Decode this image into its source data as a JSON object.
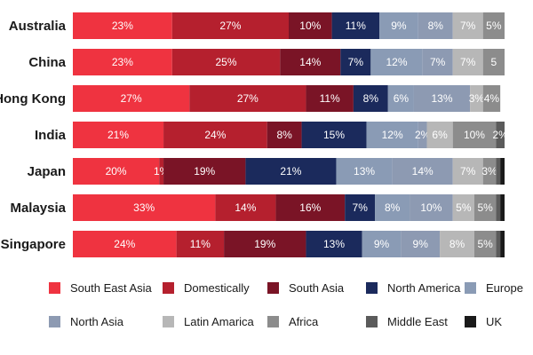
{
  "chart_data": {
    "type": "bar",
    "orientation": "horizontal",
    "stacked": "100%",
    "categories": [
      "Australia",
      "China",
      "Hong Kong",
      "India",
      "Japan",
      "Malaysia",
      "Singapore"
    ],
    "series": [
      {
        "name": "South East Asia",
        "color": "#ef3340",
        "values": [
          23,
          23,
          27,
          21,
          20,
          33,
          24
        ],
        "labels": [
          "23%",
          "23%",
          "27%",
          "21%",
          "20%",
          "33%",
          "24%"
        ]
      },
      {
        "name": "Domestically",
        "color": "#b5202e",
        "values": [
          27,
          25,
          27,
          24,
          1,
          14,
          11
        ],
        "labels": [
          "27%",
          "25%",
          "27%",
          "24%",
          "1%",
          "14%",
          "11%"
        ]
      },
      {
        "name": "South Asia",
        "color": "#7a1426",
        "values": [
          10,
          14,
          11,
          8,
          19,
          16,
          19
        ],
        "labels": [
          "10%",
          "14%",
          "11%",
          "8%",
          "19%",
          "16%",
          "19%"
        ]
      },
      {
        "name": "North America",
        "color": "#1b2a5c",
        "values": [
          11,
          7,
          8,
          15,
          21,
          7,
          13
        ],
        "labels": [
          "11%",
          "7%",
          "8%",
          "15%",
          "21%",
          "7%",
          "13%"
        ]
      },
      {
        "name": "Europe",
        "color": "#8a9bb5",
        "values": [
          9,
          12,
          6,
          12,
          13,
          8,
          9
        ],
        "labels": [
          "9%",
          "12%",
          "6%",
          "12%",
          "13%",
          "8%",
          "9%"
        ]
      },
      {
        "name": "North Asia",
        "color": "#8d9ab2",
        "values": [
          8,
          7,
          13,
          2,
          14,
          10,
          9
        ],
        "labels": [
          "8%",
          "7%",
          "13%",
          "2%",
          "14%",
          "10%",
          "9%"
        ]
      },
      {
        "name": "Latin Amarica",
        "color": "#b7b7b7",
        "values": [
          7,
          7,
          3,
          6,
          7,
          5,
          8
        ],
        "labels": [
          "7%",
          "7%",
          "3%",
          "6%",
          "7%",
          "5%",
          "8%"
        ]
      },
      {
        "name": "Africa",
        "color": "#8c8c8c",
        "values": [
          5,
          5,
          4,
          10,
          3,
          5,
          5
        ],
        "labels": [
          "5%",
          "5",
          "4%",
          "10%",
          "3%",
          "5%",
          "5%"
        ]
      },
      {
        "name": "Middle East",
        "color": "#5b5b5b",
        "values": [
          0,
          0,
          0,
          2,
          1,
          1,
          1
        ],
        "labels": [
          "",
          "%",
          "",
          "2%",
          "",
          "",
          ""
        ]
      },
      {
        "name": "UK",
        "color": "#1a1a1a",
        "values": [
          0,
          0,
          0,
          0,
          1,
          1,
          1
        ],
        "labels": [
          "",
          "",
          "",
          "",
          "",
          "",
          ""
        ]
      }
    ],
    "xlim": [
      0,
      100
    ],
    "legend_position": "bottom",
    "grid": false
  }
}
